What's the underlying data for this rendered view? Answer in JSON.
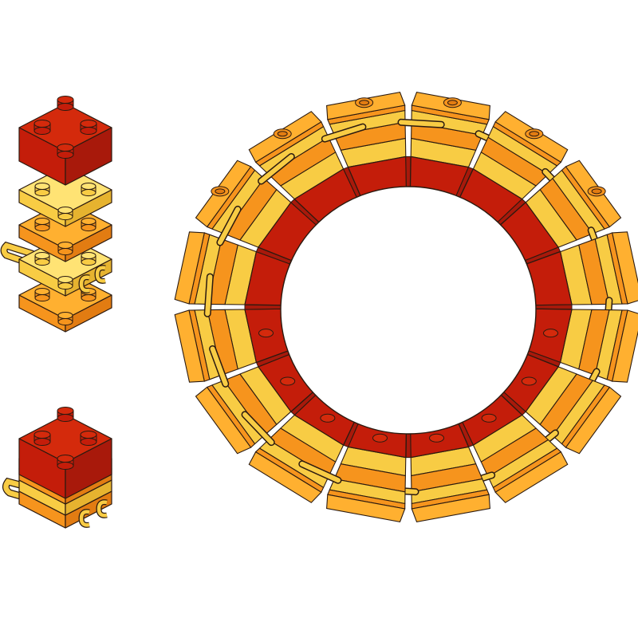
{
  "diagram": {
    "colors": {
      "red_top": "#d42a0c",
      "red_front": "#c41d0a",
      "red_side": "#a8190b",
      "orange_top": "#ffb030",
      "orange_front": "#f6941d",
      "orange_side": "#e27c12",
      "yellow_top": "#ffe374",
      "yellow_front": "#f8cc44",
      "yellow_side": "#e6b32f",
      "outline": "#2b1a10"
    },
    "exploded_stack": {
      "layers": [
        "red-brick-2x2",
        "yellow-plate-2x2",
        "orange-plate-2x2",
        "yellow-plate-with-clips",
        "orange-plate-2x2"
      ]
    },
    "assembled_module": {
      "layers": [
        "red-brick-2x2",
        "yellow-plate-2x2",
        "orange-plate-2x2",
        "yellow-plate-with-clips",
        "orange-plate-2x2"
      ]
    },
    "ring": {
      "module_count": 16
    }
  }
}
